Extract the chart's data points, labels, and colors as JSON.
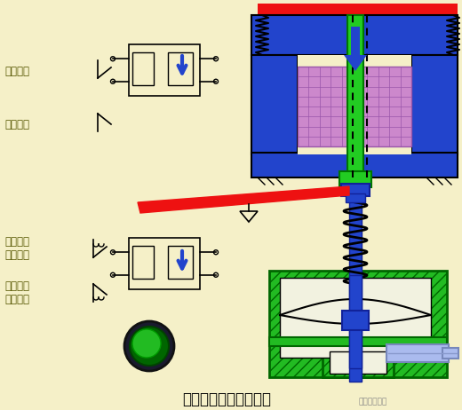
{
  "bg_color": "#f5f0c8",
  "title": "断电延时型时间继电器",
  "title_fontsize": 12,
  "labels": {
    "instant_nc": "瞬动常闭",
    "instant_no": "瞬动常开",
    "delay_no": "延时断开\n常开触头",
    "delay_nc": "延时闭合\n常闭触头"
  },
  "colors": {
    "blue": "#2244cc",
    "green": "#22cc22",
    "red": "#ee1111",
    "purple": "#cc88cc",
    "light_blue": "#aabbee",
    "hatching_green": "#22bb22",
    "dark": "#111111"
  }
}
